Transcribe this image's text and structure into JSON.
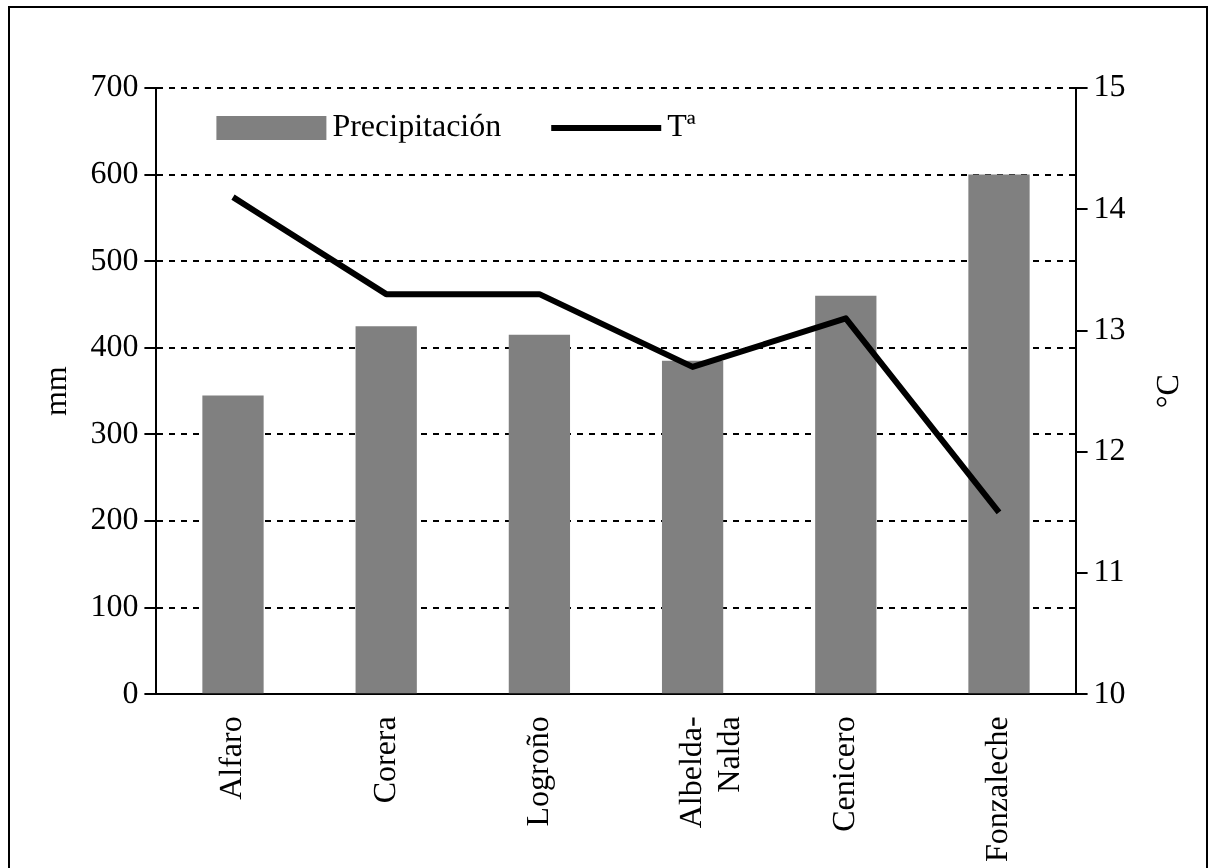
{
  "chart_data": {
    "type": "bar",
    "categories": [
      "Alfaro",
      "Corera",
      "Logroño",
      "Albelda-Nalda",
      "Cenicero",
      "Fonzaleche"
    ],
    "series": [
      {
        "name": "Precipitación",
        "color": "#808080",
        "values": [
          345,
          425,
          415,
          385,
          460,
          600
        ]
      },
      {
        "name": "Tª",
        "type": "line",
        "color": "#000000",
        "axis": "y2",
        "marker": "none",
        "values": [
          14.1,
          13.3,
          13.3,
          12.7,
          13.1,
          11.5
        ]
      }
    ],
    "ylabel": "mm",
    "y2label": "°C",
    "ylim": [
      0,
      700
    ],
    "yticks": [
      0,
      100,
      200,
      300,
      400,
      500,
      600,
      700
    ],
    "y2lim": [
      10,
      15
    ],
    "y2ticks": [
      10,
      11,
      12,
      13,
      14,
      15
    ],
    "grid": "y",
    "legend": "top left"
  }
}
